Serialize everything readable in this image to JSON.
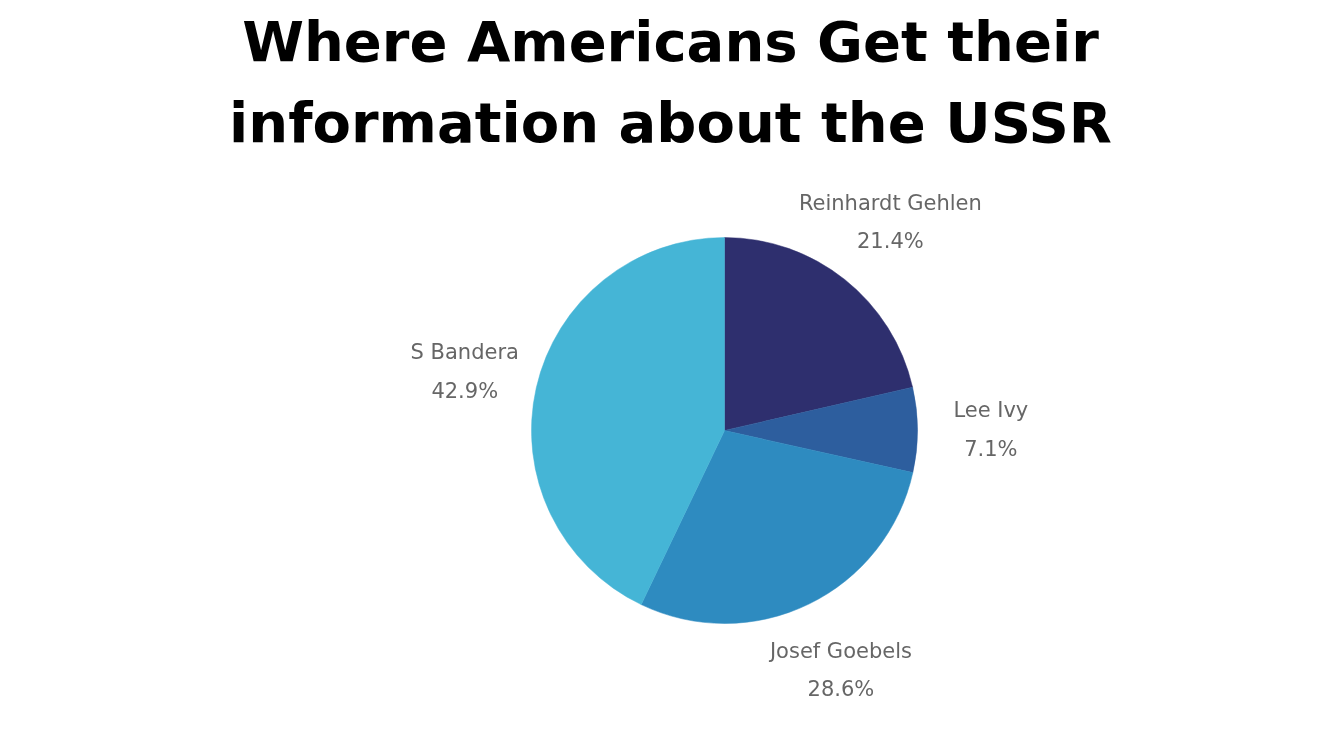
{
  "chart_data": {
    "type": "pie",
    "title": "Where Americans Get their\ninformation about the USSR",
    "categories": [
      "Reinhardt Gehlen",
      "Lee Ivy",
      "Josef Goebels",
      "S Bandera"
    ],
    "values": [
      21.4,
      7.1,
      28.6,
      42.9
    ],
    "value_labels": [
      "21.4%",
      "7.1%",
      "28.6%",
      "42.9%"
    ],
    "colors": [
      "#2e2f6e",
      "#2d5e9e",
      "#2e8bc0",
      "#45b5d6"
    ]
  }
}
